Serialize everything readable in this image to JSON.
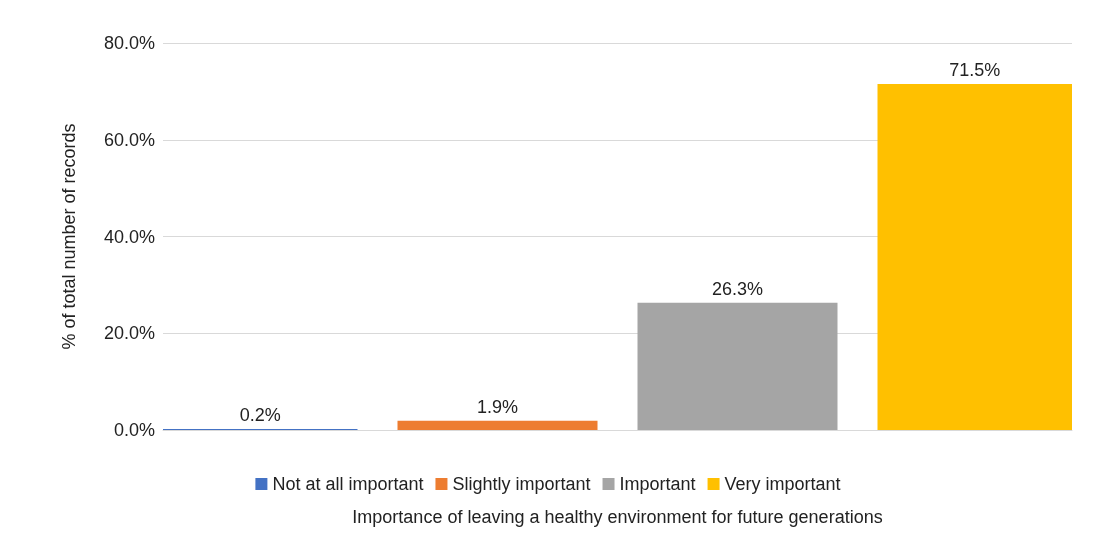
{
  "chart_data": {
    "type": "bar",
    "xlabel": "Importance of leaving a healthy environment for future generations",
    "ylabel": "% of total number of records",
    "categories": [
      null
    ],
    "series": [
      {
        "name": "Not at all important",
        "color": "#4472c4",
        "values": [
          0.2
        ],
        "value_labels": [
          "0.2%"
        ]
      },
      {
        "name": "Slightly important",
        "color": "#ed7d31",
        "values": [
          1.9
        ],
        "value_labels": [
          "1.9%"
        ]
      },
      {
        "name": "Important",
        "color": "#a5a5a5",
        "values": [
          26.3
        ],
        "value_labels": [
          "26.3%"
        ]
      },
      {
        "name": "Very important",
        "color": "#ffc000",
        "values": [
          71.5
        ],
        "value_labels": [
          "71.5%"
        ]
      }
    ],
    "ylim": [
      0,
      80
    ],
    "yticks": [
      {
        "value": 0,
        "label": "0.0%"
      },
      {
        "value": 20,
        "label": "20.0%"
      },
      {
        "value": 40,
        "label": "40.0%"
      },
      {
        "value": 60,
        "label": "60.0%"
      },
      {
        "value": 80,
        "label": "80.0%"
      }
    ],
    "grid": "y",
    "legend": "bottom"
  }
}
